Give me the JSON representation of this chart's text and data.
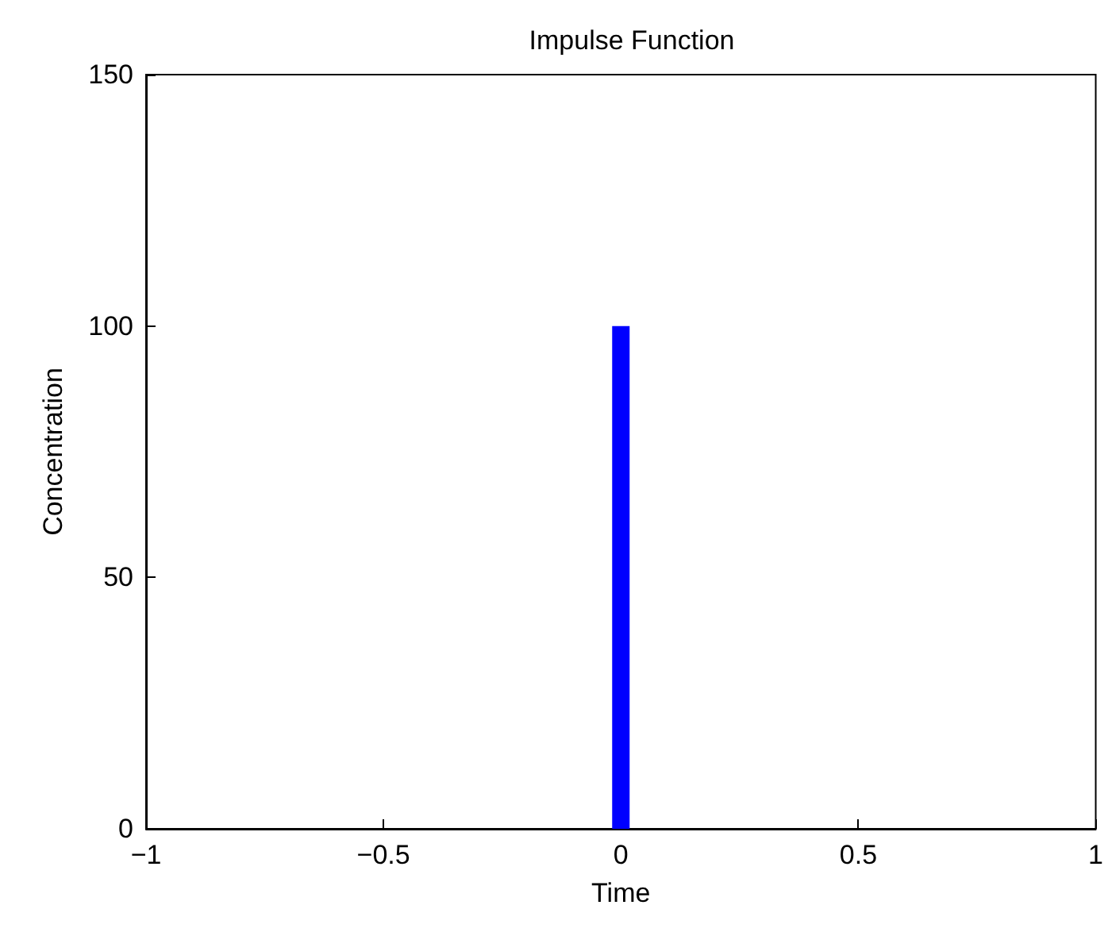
{
  "chart_data": {
    "type": "line",
    "title": "Impulse Function",
    "xlabel": "Time",
    "ylabel": "Concentration",
    "x": [
      0,
      0
    ],
    "series": [
      {
        "color": "#0000ff",
        "values": [
          0,
          100
        ]
      }
    ],
    "xlim": [
      -1,
      1
    ],
    "xticks": [
      {
        "value": -1,
        "label": "−1"
      },
      {
        "value": -0.5,
        "label": "−0.5"
      },
      0,
      0.5,
      1
    ],
    "ylim": [
      0,
      150
    ],
    "yticks": [
      0,
      50,
      100,
      150
    ],
    "grid": false,
    "marker": "none",
    "line_style": "solid"
  }
}
